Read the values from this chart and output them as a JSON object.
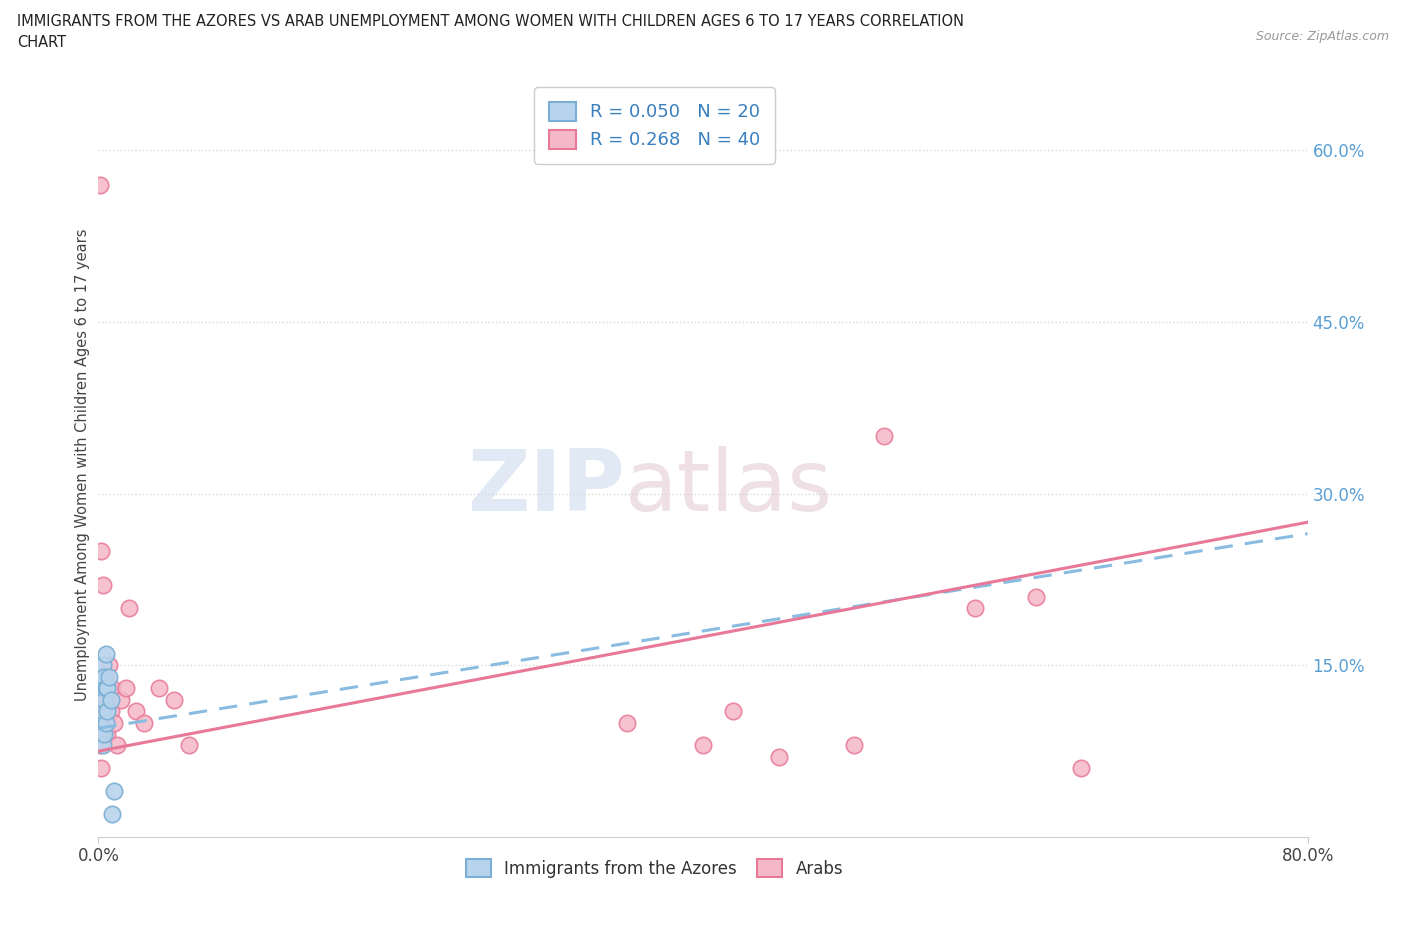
{
  "title_line1": "IMMIGRANTS FROM THE AZORES VS ARAB UNEMPLOYMENT AMONG WOMEN WITH CHILDREN AGES 6 TO 17 YEARS CORRELATION",
  "title_line2": "CHART",
  "source": "Source: ZipAtlas.com",
  "ylabel": "Unemployment Among Women with Children Ages 6 to 17 years",
  "xlim": [
    0.0,
    0.8
  ],
  "ylim": [
    0.0,
    0.65
  ],
  "yticks": [
    0.15,
    0.3,
    0.45,
    0.6
  ],
  "ytick_labels": [
    "15.0%",
    "30.0%",
    "45.0%",
    "60.0%"
  ],
  "xticks": [
    0.0,
    0.8
  ],
  "xtick_labels": [
    "0.0%",
    "80.0%"
  ],
  "legend_r_azores": "R = 0.050",
  "legend_n_azores": "N = 20",
  "legend_r_arabs": "R = 0.268",
  "legend_n_arabs": "N = 40",
  "azores_fill": "#b8d4ed",
  "arabs_fill": "#f5b8c8",
  "azores_edge": "#7aaed4",
  "arabs_edge": "#e87898",
  "azores_line": "#89bce0",
  "arabs_line": "#e87898",
  "grid_color": "#d8d8d8",
  "azores_x": [
    0.001,
    0.001,
    0.002,
    0.002,
    0.003,
    0.003,
    0.003,
    0.003,
    0.004,
    0.004,
    0.004,
    0.005,
    0.005,
    0.005,
    0.006,
    0.006,
    0.007,
    0.008,
    0.009,
    0.01
  ],
  "azores_y": [
    0.1,
    0.14,
    0.09,
    0.13,
    0.08,
    0.11,
    0.13,
    0.15,
    0.09,
    0.12,
    0.14,
    0.1,
    0.13,
    0.16,
    0.11,
    0.13,
    0.14,
    0.12,
    0.02,
    0.04
  ],
  "arabs_x": [
    0.001,
    0.001,
    0.002,
    0.002,
    0.003,
    0.003,
    0.003,
    0.004,
    0.004,
    0.004,
    0.005,
    0.005,
    0.005,
    0.006,
    0.006,
    0.007,
    0.007,
    0.008,
    0.008,
    0.009,
    0.01,
    0.012,
    0.015,
    0.018,
    0.02,
    0.025,
    0.03,
    0.04,
    0.05,
    0.06,
    0.35,
    0.4,
    0.42,
    0.45,
    0.5,
    0.52,
    0.58,
    0.62,
    0.65,
    0.002
  ],
  "arabs_y": [
    0.57,
    0.08,
    0.25,
    0.1,
    0.22,
    0.12,
    0.14,
    0.13,
    0.11,
    0.09,
    0.12,
    0.1,
    0.14,
    0.11,
    0.09,
    0.13,
    0.15,
    0.12,
    0.11,
    0.13,
    0.1,
    0.08,
    0.12,
    0.13,
    0.2,
    0.11,
    0.1,
    0.13,
    0.12,
    0.08,
    0.1,
    0.08,
    0.11,
    0.07,
    0.08,
    0.35,
    0.2,
    0.21,
    0.06,
    0.06
  ],
  "trend_x_start": 0.0,
  "trend_x_end": 0.8,
  "azores_trend_y_start": 0.095,
  "azores_trend_y_end": 0.265,
  "arabs_trend_y_start": 0.075,
  "arabs_trend_y_end": 0.275
}
